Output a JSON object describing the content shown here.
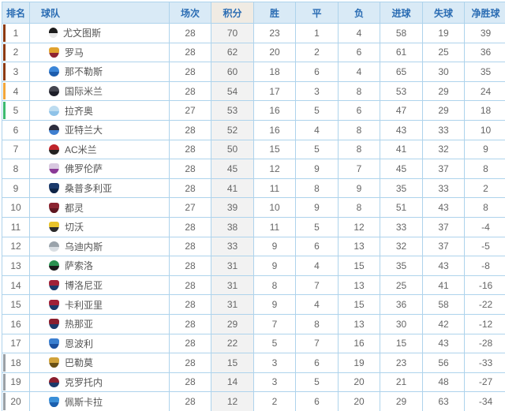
{
  "table": {
    "headers": [
      "排名",
      "球队",
      "场次",
      "积分",
      "胜",
      "平",
      "负",
      "进球",
      "失球",
      "净胜球"
    ],
    "zone_colors": {
      "ucl": "#8c3a12",
      "ucl_qual": "#f2a63a",
      "uel": "#3dba6f",
      "relegation": "#9aa0a6"
    },
    "grid_color": "#aed3ec",
    "header_bg": "#d9eaf6",
    "header_text_color": "#2a6cb3",
    "points_col_bg": "#f2f2f2",
    "rows": [
      {
        "rank": 1,
        "team": "尤文图斯",
        "played": 28,
        "points": 70,
        "win": 23,
        "draw": 1,
        "loss": 4,
        "gf": 58,
        "ga": 19,
        "gd": "39",
        "zone": "ucl",
        "icon": {
          "shape": "oval",
          "colors": [
            "#1c1c1c",
            "#e8e8e8"
          ]
        }
      },
      {
        "rank": 2,
        "team": "罗马",
        "played": 28,
        "points": 62,
        "win": 20,
        "draw": 2,
        "loss": 6,
        "gf": 61,
        "ga": 25,
        "gd": "36",
        "zone": "ucl",
        "icon": {
          "shape": "shield",
          "colors": [
            "#e0a22e",
            "#8e2433"
          ]
        }
      },
      {
        "rank": 3,
        "team": "那不勒斯",
        "played": 28,
        "points": 60,
        "win": 18,
        "draw": 6,
        "loss": 4,
        "gf": 65,
        "ga": 30,
        "gd": "35",
        "zone": "ucl",
        "icon": {
          "shape": "circle",
          "colors": [
            "#3b86d8",
            "#1d5dad"
          ]
        }
      },
      {
        "rank": 4,
        "team": "国际米兰",
        "played": 28,
        "points": 54,
        "win": 17,
        "draw": 3,
        "loss": 8,
        "gf": 53,
        "ga": 29,
        "gd": "24",
        "zone": "ucl_qual",
        "icon": {
          "shape": "circle",
          "colors": [
            "#44454f",
            "#1e1f29"
          ]
        }
      },
      {
        "rank": 5,
        "team": "拉齐奥",
        "played": 27,
        "points": 53,
        "win": 16,
        "draw": 5,
        "loss": 6,
        "gf": 47,
        "ga": 29,
        "gd": "18",
        "zone": "uel",
        "icon": {
          "shape": "circle",
          "colors": [
            "#bcdcf0",
            "#8fc3e8"
          ]
        }
      },
      {
        "rank": 6,
        "team": "亚特兰大",
        "played": 28,
        "points": 52,
        "win": 16,
        "draw": 4,
        "loss": 8,
        "gf": 43,
        "ga": 33,
        "gd": "10",
        "zone": "none",
        "icon": {
          "shape": "circle",
          "colors": [
            "#2d2d3d",
            "#3f7fd0"
          ]
        }
      },
      {
        "rank": 7,
        "team": "AC米兰",
        "played": 28,
        "points": 50,
        "win": 15,
        "draw": 5,
        "loss": 8,
        "gf": 41,
        "ga": 32,
        "gd": "9",
        "zone": "none",
        "icon": {
          "shape": "circle",
          "colors": [
            "#c0242b",
            "#222222"
          ]
        }
      },
      {
        "rank": 8,
        "team": "佛罗伦萨",
        "played": 28,
        "points": 45,
        "win": 12,
        "draw": 9,
        "loss": 7,
        "gf": 45,
        "ga": 37,
        "gd": "8",
        "zone": "none",
        "icon": {
          "shape": "shield",
          "colors": [
            "#d8c8e0",
            "#8a3a96"
          ]
        }
      },
      {
        "rank": 9,
        "team": "桑普多利亚",
        "played": 28,
        "points": 41,
        "win": 11,
        "draw": 8,
        "loss": 9,
        "gf": 35,
        "ga": 33,
        "gd": "2",
        "zone": "none",
        "icon": {
          "shape": "shield",
          "colors": [
            "#1b3a6b",
            "#0e2447"
          ]
        }
      },
      {
        "rank": 10,
        "team": "都灵",
        "played": 27,
        "points": 39,
        "win": 10,
        "draw": 9,
        "loss": 8,
        "gf": 51,
        "ga": 43,
        "gd": "8",
        "zone": "none",
        "icon": {
          "shape": "shield",
          "colors": [
            "#8a2430",
            "#5e1620"
          ]
        }
      },
      {
        "rank": 11,
        "team": "切沃",
        "played": 28,
        "points": 38,
        "win": 11,
        "draw": 5,
        "loss": 12,
        "gf": 33,
        "ga": 37,
        "gd": "-4",
        "zone": "none",
        "icon": {
          "shape": "shield",
          "colors": [
            "#e8c32a",
            "#2a2a2a"
          ]
        }
      },
      {
        "rank": 12,
        "team": "乌迪内斯",
        "played": 28,
        "points": 33,
        "win": 9,
        "draw": 6,
        "loss": 13,
        "gf": 32,
        "ga": 37,
        "gd": "-5",
        "zone": "none",
        "icon": {
          "shape": "circle",
          "colors": [
            "#9aa3ab",
            "#d8dde2"
          ]
        }
      },
      {
        "rank": 13,
        "team": "萨索洛",
        "played": 28,
        "points": 31,
        "win": 9,
        "draw": 4,
        "loss": 15,
        "gf": 35,
        "ga": 43,
        "gd": "-8",
        "zone": "none",
        "icon": {
          "shape": "circle",
          "colors": [
            "#2a9150",
            "#1a1a1a"
          ]
        }
      },
      {
        "rank": 14,
        "team": "博洛尼亚",
        "played": 28,
        "points": 31,
        "win": 8,
        "draw": 7,
        "loss": 13,
        "gf": 25,
        "ga": 41,
        "gd": "-16",
        "zone": "none",
        "icon": {
          "shape": "shield",
          "colors": [
            "#a02138",
            "#1b3a6b"
          ]
        }
      },
      {
        "rank": 15,
        "team": "卡利亚里",
        "played": 28,
        "points": 31,
        "win": 9,
        "draw": 4,
        "loss": 15,
        "gf": 36,
        "ga": 58,
        "gd": "-22",
        "zone": "none",
        "icon": {
          "shape": "shield",
          "colors": [
            "#a02138",
            "#1b3a6b"
          ]
        }
      },
      {
        "rank": 16,
        "team": "热那亚",
        "played": 28,
        "points": 29,
        "win": 7,
        "draw": 8,
        "loss": 13,
        "gf": 30,
        "ga": 42,
        "gd": "-12",
        "zone": "none",
        "icon": {
          "shape": "shield",
          "colors": [
            "#8a1e2e",
            "#1b3a6b"
          ]
        }
      },
      {
        "rank": 17,
        "team": "恩波利",
        "played": 28,
        "points": 22,
        "win": 5,
        "draw": 7,
        "loss": 16,
        "gf": 15,
        "ga": 43,
        "gd": "-28",
        "zone": "none",
        "icon": {
          "shape": "shield",
          "colors": [
            "#3a7fd0",
            "#1b4f9e"
          ]
        }
      },
      {
        "rank": 18,
        "team": "巴勒莫",
        "played": 28,
        "points": 15,
        "win": 3,
        "draw": 6,
        "loss": 19,
        "gf": 23,
        "ga": 56,
        "gd": "-33",
        "zone": "relegation",
        "icon": {
          "shape": "shield",
          "colors": [
            "#d0a23a",
            "#6a5016"
          ]
        }
      },
      {
        "rank": 19,
        "team": "克罗托内",
        "played": 28,
        "points": 14,
        "win": 3,
        "draw": 5,
        "loss": 20,
        "gf": 21,
        "ga": 48,
        "gd": "-27",
        "zone": "relegation",
        "icon": {
          "shape": "circle",
          "colors": [
            "#8a1e2e",
            "#1b3a6b"
          ]
        }
      },
      {
        "rank": 20,
        "team": "佩斯卡拉",
        "played": 28,
        "points": 12,
        "win": 2,
        "draw": 6,
        "loss": 20,
        "gf": 29,
        "ga": 63,
        "gd": "-34",
        "zone": "relegation",
        "icon": {
          "shape": "shield",
          "colors": [
            "#3a8fd8",
            "#1b5fae"
          ]
        }
      }
    ]
  }
}
